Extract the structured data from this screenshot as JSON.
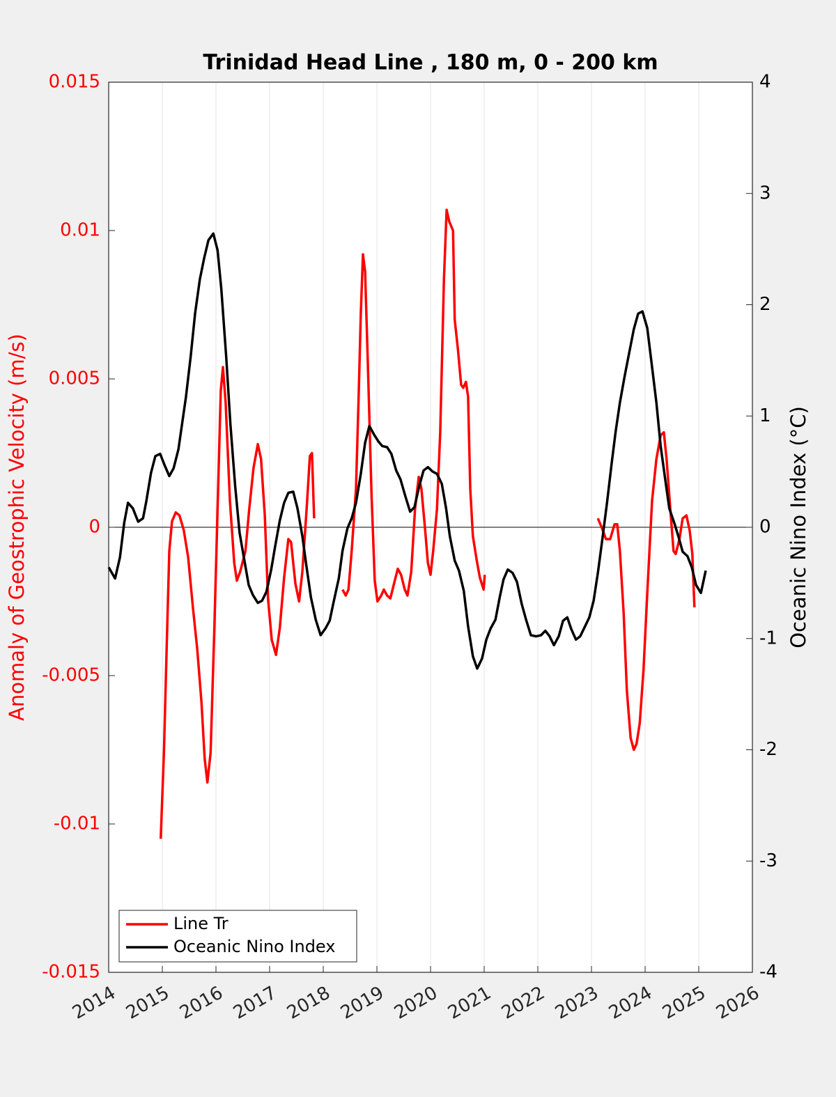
{
  "chart_data": {
    "type": "line",
    "title": "Trinidad Head Line , 180 m, 0 - 200 km",
    "ylabel": "Anomaly of Geostrophic Velocity (m/s)",
    "y2label": "Oceanic Nino Index (°C)",
    "xlim": [
      2014,
      2026
    ],
    "xticks": [
      2014,
      2015,
      2016,
      2017,
      2018,
      2019,
      2020,
      2021,
      2022,
      2023,
      2024,
      2025,
      2026
    ],
    "ylim": [
      -0.015,
      0.015
    ],
    "yticks": [
      -0.015,
      -0.01,
      -0.005,
      0,
      0.005,
      0.01,
      0.015
    ],
    "y2lim": [
      -4,
      4
    ],
    "y2ticks": [
      -4,
      -3,
      -2,
      -1,
      0,
      1,
      2,
      3,
      4
    ],
    "grid": true,
    "legend": "lower left",
    "series": [
      {
        "name": "Line Tr",
        "color": "#ff0000",
        "x": [
          2014.97,
          2015.03,
          2015.08,
          2015.13,
          2015.18,
          2015.25,
          2015.32,
          2015.4,
          2015.48,
          2015.57,
          2015.65,
          2015.73,
          2015.79,
          2015.84,
          2015.9,
          2015.97,
          2016.04,
          2016.09,
          2016.13,
          2016.18,
          2016.26,
          2016.34,
          2016.39,
          2016.45,
          2016.55,
          2016.62,
          2016.7,
          2016.78,
          2016.84,
          2016.91,
          2016.97,
          2017.04,
          2017.12,
          2017.19,
          2017.27,
          2017.35,
          2017.4,
          2017.48,
          2017.55,
          2017.61,
          2017.69,
          2017.75,
          2017.79,
          2017.83,
          2018.1,
          2018.36,
          2018.42,
          2018.47,
          2018.53,
          2018.61,
          2018.66,
          2018.7,
          2018.74,
          2018.78,
          2018.83,
          2018.9,
          2018.96,
          2019.01,
          2019.08,
          2019.13,
          2019.19,
          2019.25,
          2019.32,
          2019.39,
          2019.45,
          2019.52,
          2019.57,
          2019.64,
          2019.71,
          2019.78,
          2019.83,
          2019.9,
          2019.95,
          2020.0,
          2020.05,
          2020.12,
          2020.18,
          2020.25,
          2020.3,
          2020.35,
          2020.42,
          2020.45,
          2020.51,
          2020.57,
          2020.61,
          2020.66,
          2020.7,
          2020.74,
          2020.79,
          2020.86,
          2020.92,
          2020.99,
          2021.01,
          2022.0,
          2023.12,
          2023.19,
          2023.27,
          2023.35,
          2023.43,
          2023.48,
          2023.53,
          2023.6,
          2023.66,
          2023.73,
          2023.79,
          2023.84,
          2023.9,
          2023.97,
          2024.05,
          2024.13,
          2024.21,
          2024.29,
          2024.35,
          2024.4,
          2024.47,
          2024.53,
          2024.57,
          2024.64,
          2024.7,
          2024.77,
          2024.83,
          2024.88,
          2024.92
        ],
        "values": [
          -0.0105,
          -0.0076,
          -0.0041,
          -0.0008,
          0.0002,
          0.0005,
          0.0004,
          -0.0001,
          -0.001,
          -0.0027,
          -0.0041,
          -0.0059,
          -0.0078,
          -0.0086,
          -0.0076,
          -0.0034,
          0.0013,
          0.0046,
          0.0054,
          0.0042,
          0.0009,
          -0.0012,
          -0.0018,
          -0.0015,
          -0.0008,
          0.0006,
          0.002,
          0.0028,
          0.0023,
          0.0004,
          -0.0024,
          -0.0038,
          -0.0043,
          -0.0034,
          -0.0017,
          -0.0004,
          -0.0005,
          -0.0019,
          -0.0025,
          -0.0015,
          0.0006,
          0.0024,
          0.0025,
          0.0003,
          null,
          -0.0021,
          -0.0023,
          -0.0021,
          -0.0008,
          0.0013,
          0.0044,
          0.0072,
          0.0092,
          0.0086,
          0.0056,
          0.0011,
          -0.0018,
          -0.0025,
          -0.0023,
          -0.0021,
          -0.0023,
          -0.0024,
          -0.0019,
          -0.0014,
          -0.0016,
          -0.0021,
          -0.0023,
          -0.0015,
          0.0006,
          0.0017,
          0.0013,
          -0.0001,
          -0.0012,
          -0.0016,
          -0.0008,
          0.0006,
          0.0032,
          0.0084,
          0.0107,
          0.0103,
          0.01,
          0.007,
          0.006,
          0.0048,
          0.0047,
          0.0049,
          0.0044,
          0.0013,
          -0.0003,
          -0.0011,
          -0.0017,
          -0.0021,
          -0.0016,
          null,
          0.0003,
          0,
          -0.0004,
          -0.0004,
          0.0001,
          0.0001,
          -0.0008,
          -0.0029,
          -0.0055,
          -0.0071,
          -0.0075,
          -0.0073,
          -0.0066,
          -0.0048,
          -0.0019,
          0.0009,
          0.0023,
          0.0031,
          0.0032,
          0.0023,
          0.0006,
          -0.0008,
          -0.0009,
          -0.0004,
          0.0003,
          0.0004,
          -0.0001,
          -0.0009,
          -0.0027
        ]
      },
      {
        "name": "Oceanic Nino Index",
        "color": "#000000",
        "axis": "y2",
        "x": [
          2014.0,
          2014.12,
          2014.21,
          2014.29,
          2014.36,
          2014.45,
          2014.55,
          2014.64,
          2014.7,
          2014.79,
          2014.87,
          2014.96,
          2015.04,
          2015.13,
          2015.21,
          2015.3,
          2015.44,
          2015.53,
          2015.61,
          2015.7,
          2015.78,
          2015.86,
          2015.95,
          2016.03,
          2016.1,
          2016.19,
          2016.27,
          2016.36,
          2016.44,
          2016.52,
          2016.61,
          2016.69,
          2016.78,
          2016.86,
          2016.94,
          2017.03,
          2017.1,
          2017.19,
          2017.27,
          2017.35,
          2017.44,
          2017.52,
          2017.61,
          2017.69,
          2017.77,
          2017.86,
          2017.95,
          2018.04,
          2018.12,
          2018.19,
          2018.29,
          2018.36,
          2018.45,
          2018.53,
          2018.61,
          2018.7,
          2018.78,
          2018.86,
          2018.95,
          2019.03,
          2019.1,
          2019.19,
          2019.27,
          2019.36,
          2019.44,
          2019.53,
          2019.62,
          2019.7,
          2019.79,
          2019.87,
          2019.95,
          2020.04,
          2020.12,
          2020.21,
          2020.29,
          2020.36,
          2020.45,
          2020.53,
          2020.62,
          2020.7,
          2020.79,
          2020.87,
          2020.96,
          2021.04,
          2021.12,
          2021.21,
          2021.29,
          2021.36,
          2021.44,
          2021.53,
          2021.61,
          2021.7,
          2021.78,
          2021.87,
          2021.97,
          2022.06,
          2022.14,
          2022.22,
          2022.3,
          2022.39,
          2022.47,
          2022.55,
          2022.62,
          2022.71,
          2022.79,
          2022.88,
          2022.96,
          2023.04,
          2023.12,
          2023.21,
          2023.29,
          2023.38,
          2023.45,
          2023.53,
          2023.62,
          2023.7,
          2023.79,
          2023.87,
          2023.95,
          2024.04,
          2024.12,
          2024.21,
          2024.29,
          2024.38,
          2024.45,
          2024.55,
          2024.62,
          2024.7,
          2024.79,
          2024.87,
          2024.95,
          2025.04,
          2025.13
        ],
        "values": [
          -0.36,
          -0.46,
          -0.27,
          0.04,
          0.22,
          0.17,
          0.05,
          0.08,
          0.23,
          0.49,
          0.64,
          0.66,
          0.56,
          0.46,
          0.53,
          0.7,
          1.17,
          1.54,
          1.92,
          2.23,
          2.42,
          2.58,
          2.64,
          2.49,
          2.14,
          1.54,
          0.92,
          0.36,
          -0.05,
          -0.27,
          -0.52,
          -0.61,
          -0.68,
          -0.66,
          -0.58,
          -0.38,
          -0.18,
          0.06,
          0.22,
          0.31,
          0.32,
          0.17,
          -0.08,
          -0.36,
          -0.63,
          -0.83,
          -0.97,
          -0.91,
          -0.84,
          -0.68,
          -0.46,
          -0.21,
          -0.01,
          0.08,
          0.22,
          0.48,
          0.76,
          0.91,
          0.83,
          0.77,
          0.73,
          0.72,
          0.66,
          0.51,
          0.43,
          0.28,
          0.14,
          0.18,
          0.37,
          0.51,
          0.54,
          0.5,
          0.48,
          0.39,
          0.17,
          -0.08,
          -0.3,
          -0.39,
          -0.57,
          -0.89,
          -1.16,
          -1.27,
          -1.18,
          -1.01,
          -0.91,
          -0.83,
          -0.63,
          -0.47,
          -0.38,
          -0.41,
          -0.49,
          -0.69,
          -0.83,
          -0.97,
          -0.98,
          -0.97,
          -0.93,
          -0.98,
          -1.06,
          -0.98,
          -0.84,
          -0.81,
          -0.91,
          -1.01,
          -0.98,
          -0.89,
          -0.81,
          -0.66,
          -0.41,
          -0.08,
          0.22,
          0.59,
          0.86,
          1.12,
          1.36,
          1.56,
          1.78,
          1.92,
          1.94,
          1.79,
          1.48,
          1.12,
          0.73,
          0.41,
          0.17,
          0.03,
          -0.08,
          -0.22,
          -0.26,
          -0.36,
          -0.52,
          -0.59,
          -0.39
        ]
      }
    ]
  }
}
